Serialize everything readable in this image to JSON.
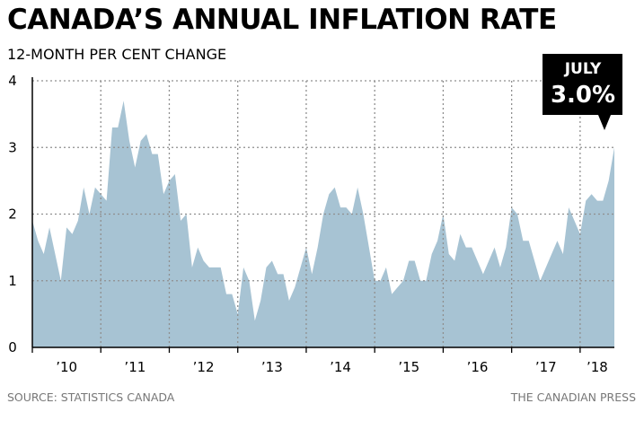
{
  "title": "CANADA’S ANNUAL INFLATION RATE",
  "subtitle": "12-MONTH PER CENT CHANGE",
  "source": "SOURCE: STATISTICS CANADA",
  "credit": "THE CANADIAN PRESS",
  "callout": {
    "month": "JULY",
    "value": "3.0%"
  },
  "colors": {
    "area": "#a7c3d3",
    "grid": "#8f8f8f",
    "axis": "#000000",
    "callout_bg": "#000000"
  },
  "chart_data": {
    "type": "area",
    "title": "CANADA’S ANNUAL INFLATION RATE",
    "ylabel": "12-MONTH PER CENT CHANGE",
    "ylim": [
      0,
      4
    ],
    "yticks": [
      0,
      1,
      2,
      3,
      4
    ],
    "start": "2010-01",
    "end": "2018-07",
    "x_tick_labels": [
      "’10",
      "’11",
      "’12",
      "’13",
      "’14",
      "’15",
      "’16",
      "’17",
      "’18"
    ],
    "values": [
      1.9,
      1.6,
      1.4,
      1.8,
      1.4,
      1.0,
      1.8,
      1.7,
      1.9,
      2.4,
      2.0,
      2.4,
      2.3,
      2.2,
      3.3,
      3.3,
      3.7,
      3.1,
      2.7,
      3.1,
      3.2,
      2.9,
      2.9,
      2.3,
      2.5,
      2.6,
      1.9,
      2.0,
      1.2,
      1.5,
      1.3,
      1.2,
      1.2,
      1.2,
      0.8,
      0.8,
      0.5,
      1.2,
      1.0,
      0.4,
      0.7,
      1.2,
      1.3,
      1.1,
      1.1,
      0.7,
      0.9,
      1.2,
      1.5,
      1.1,
      1.5,
      2.0,
      2.3,
      2.4,
      2.1,
      2.1,
      2.0,
      2.4,
      2.0,
      1.5,
      1.0,
      1.0,
      1.2,
      0.8,
      0.9,
      1.0,
      1.3,
      1.3,
      1.0,
      1.0,
      1.4,
      1.6,
      2.0,
      1.4,
      1.3,
      1.7,
      1.5,
      1.5,
      1.3,
      1.1,
      1.3,
      1.5,
      1.2,
      1.5,
      2.1,
      2.0,
      1.6,
      1.6,
      1.3,
      1.0,
      1.2,
      1.4,
      1.6,
      1.4,
      2.1,
      1.9,
      1.7,
      2.2,
      2.3,
      2.2,
      2.2,
      2.5,
      3.0
    ]
  }
}
